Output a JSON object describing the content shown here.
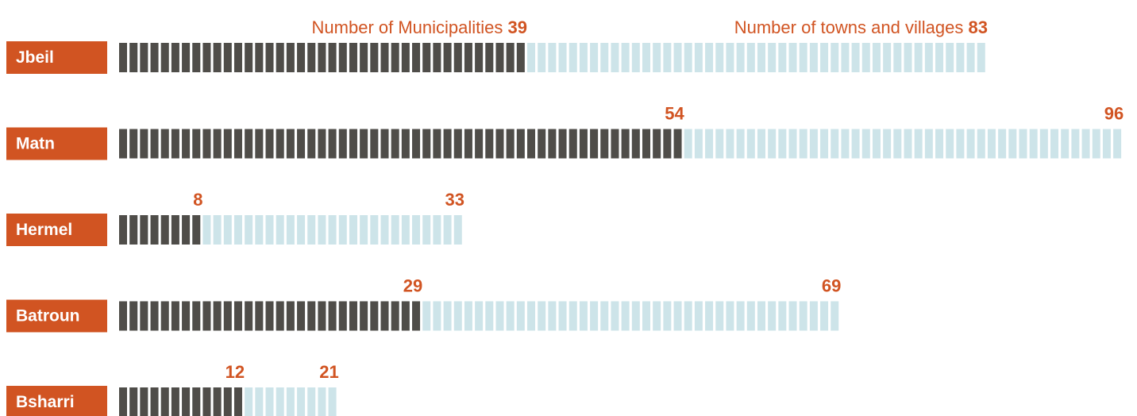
{
  "chart_data": {
    "type": "bar",
    "categories": [
      "Jbeil",
      "Matn",
      "Hermel",
      "Batroun",
      "Bsharri"
    ],
    "series": [
      {
        "name": "Number of Municipalities",
        "color": "#4f4d49",
        "values": [
          39,
          54,
          8,
          29,
          12
        ]
      },
      {
        "name": "Number of towns and villages",
        "color": "#cde4e9",
        "values": [
          83,
          96,
          33,
          69,
          21
        ]
      }
    ],
    "label_color": "#d15422"
  }
}
